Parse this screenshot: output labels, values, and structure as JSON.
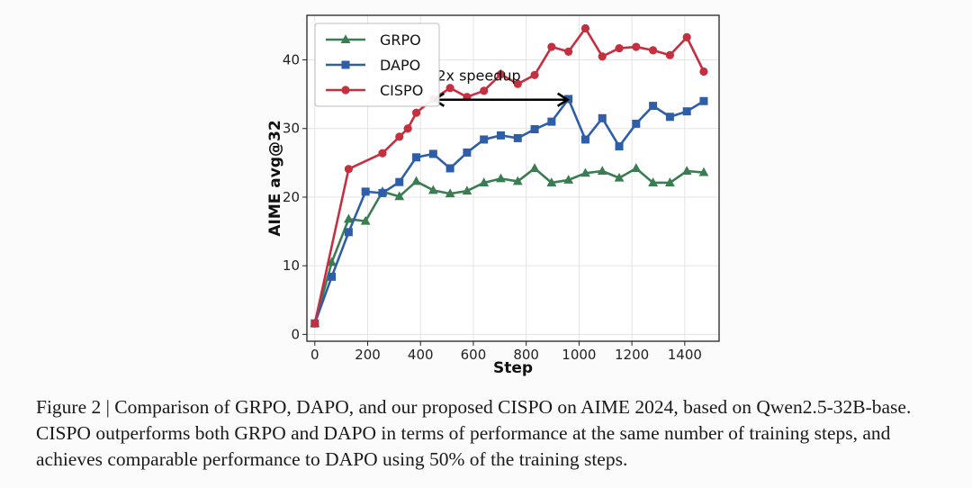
{
  "chart_data": {
    "type": "line",
    "title": "",
    "xlabel": "Step",
    "ylabel": "AIME avg@32",
    "xlim": [
      -30,
      1530
    ],
    "ylim": [
      -1,
      46.5
    ],
    "xticks": [
      0,
      200,
      400,
      600,
      800,
      1000,
      1200,
      1400
    ],
    "yticks": [
      0,
      10,
      20,
      30,
      40
    ],
    "grid": true,
    "legend_position": "top-left",
    "series": [
      {
        "name": "GRPO",
        "color": "#3b7d52",
        "marker": "triangle",
        "x": [
          0,
          64,
          128,
          192,
          256,
          320,
          384,
          448,
          512,
          576,
          640,
          704,
          768,
          832,
          896,
          960,
          1024,
          1088,
          1152,
          1216,
          1280,
          1344,
          1408,
          1472
        ],
        "y": [
          1.6,
          10.5,
          16.8,
          16.5,
          20.8,
          20.1,
          22.3,
          21.0,
          20.5,
          20.9,
          22.1,
          22.7,
          22.3,
          24.2,
          22.1,
          22.5,
          23.5,
          23.8,
          22.8,
          24.2,
          22.1,
          22.1,
          23.8,
          23.6
        ]
      },
      {
        "name": "DAPO",
        "color": "#2f5ea8",
        "marker": "square",
        "x": [
          0,
          64,
          128,
          192,
          256,
          320,
          384,
          448,
          512,
          576,
          640,
          704,
          768,
          832,
          896,
          960,
          1024,
          1088,
          1152,
          1216,
          1280,
          1344,
          1408,
          1472
        ],
        "y": [
          1.6,
          8.4,
          14.9,
          20.8,
          20.6,
          22.2,
          25.8,
          26.3,
          24.2,
          26.5,
          28.4,
          29.0,
          28.6,
          29.9,
          31.0,
          34.3,
          28.4,
          31.5,
          27.4,
          30.7,
          33.3,
          31.7,
          32.5,
          34.0
        ]
      },
      {
        "name": "CISPO",
        "color": "#c43040",
        "marker": "circle",
        "x": [
          0,
          128,
          256,
          320,
          352,
          384,
          448,
          512,
          576,
          640,
          704,
          768,
          832,
          896,
          960,
          1024,
          1088,
          1152,
          1216,
          1280,
          1344,
          1408,
          1472
        ],
        "y": [
          1.6,
          24.1,
          26.4,
          28.8,
          30.0,
          32.3,
          34.3,
          35.9,
          34.6,
          35.5,
          37.9,
          36.5,
          37.8,
          41.9,
          41.2,
          44.6,
          40.5,
          41.7,
          41.9,
          41.4,
          40.7,
          43.3,
          38.3
        ]
      }
    ],
    "annotations": [
      {
        "text": "2x speedup",
        "arrow_from": [
          448,
          34.2
        ],
        "arrow_to": [
          960,
          34.2
        ]
      }
    ]
  },
  "caption": "Figure 2 | Comparison of GRPO, DAPO, and our proposed CISPO on AIME 2024, based on Qwen2.5-32B-base. CISPO outperforms both GRPO and DAPO in terms of performance at the same number of training steps, and achieves comparable performance to DAPO using 50% of the training steps."
}
